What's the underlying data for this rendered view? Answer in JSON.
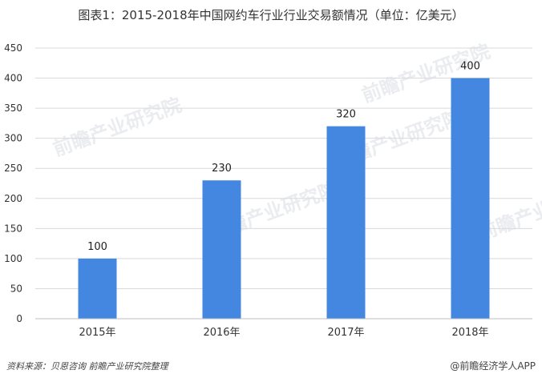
{
  "title": "图表1：2015-2018年中国网约车行业行业交易额情况（单位：亿美元）",
  "chart_data": {
    "type": "bar",
    "categories": [
      "2015年",
      "2016年",
      "2017年",
      "2018年"
    ],
    "values": [
      100,
      230,
      320,
      400
    ],
    "data_labels": [
      "100",
      "230",
      "320",
      "400"
    ],
    "yticks": [
      "0",
      "50",
      "100",
      "150",
      "200",
      "250",
      "300",
      "350",
      "400",
      "450"
    ],
    "ylim": [
      0,
      450
    ],
    "bar_color": "#4387e0",
    "grid": true,
    "legend": "none"
  },
  "watermark": "前瞻产业研究院",
  "footer": {
    "source": "资料来源：贝恩咨询  前瞻产业研究院整理",
    "brand": "@前瞻经济学人APP"
  }
}
